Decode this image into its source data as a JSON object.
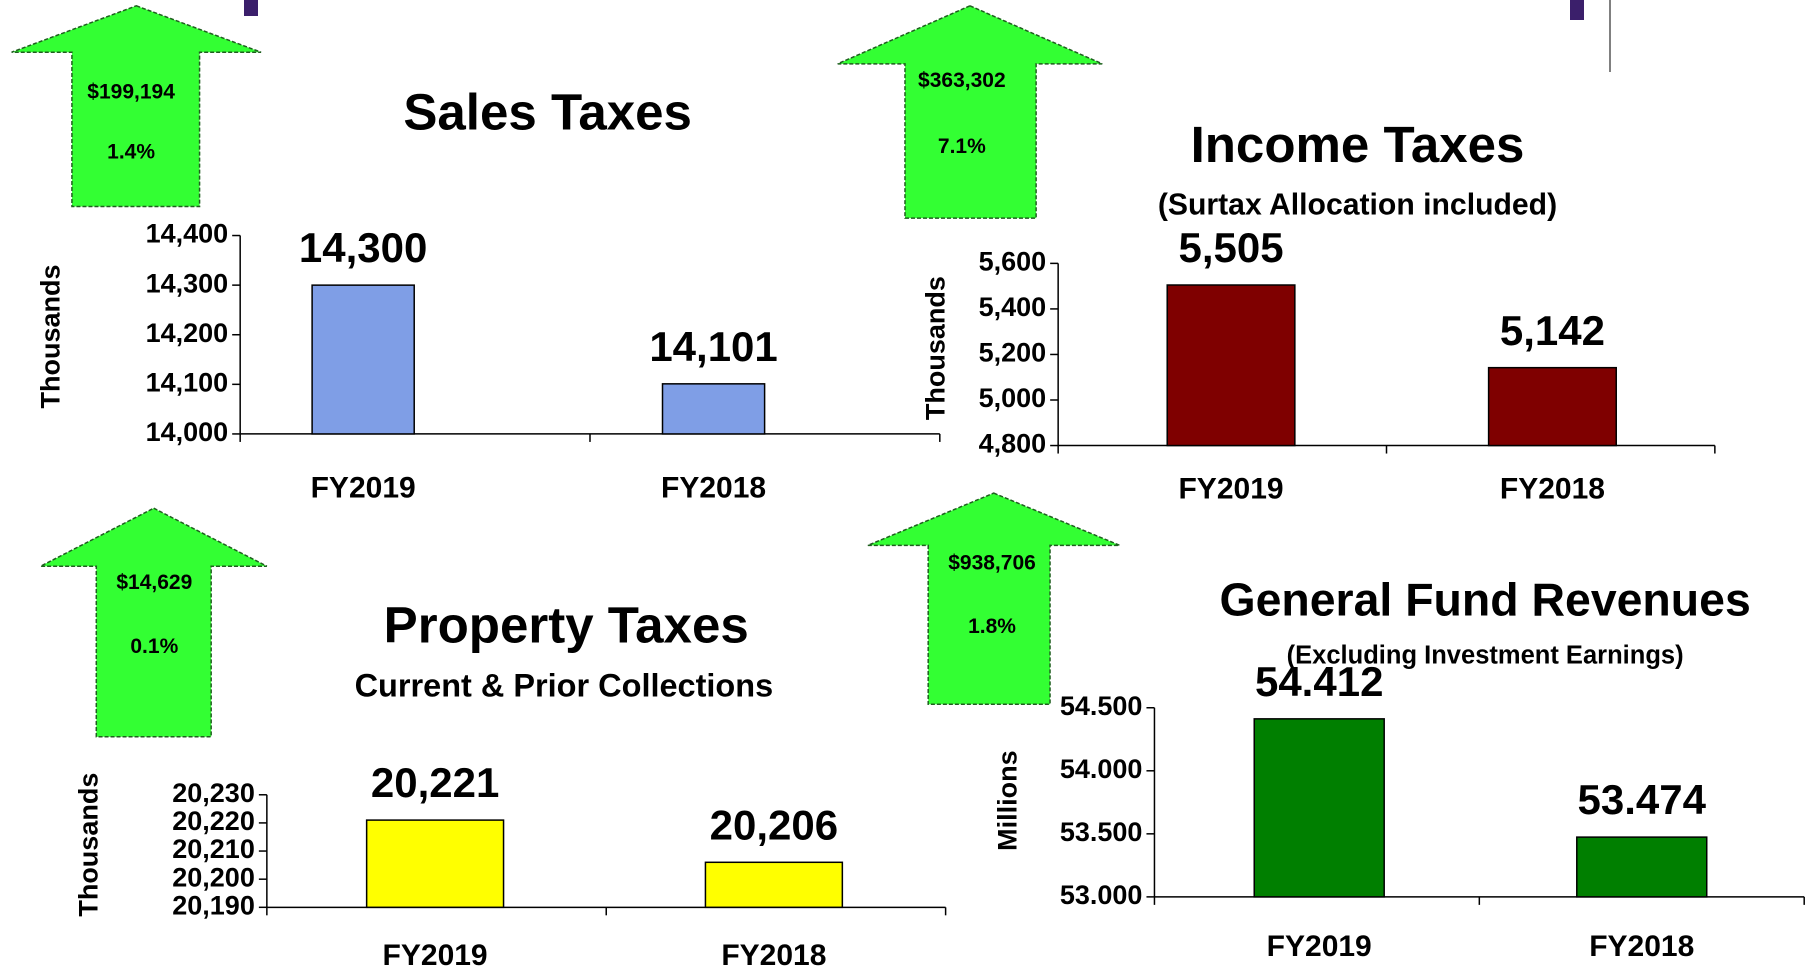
{
  "chart_data": [
    {
      "type": "bar",
      "title": "Sales Taxes",
      "ylabel": "Thousands",
      "categories": [
        "FY2019",
        "FY2018"
      ],
      "values": [
        14300,
        14101
      ],
      "value_labels": [
        "14,300",
        "14,101"
      ],
      "color": "#7f9ee6",
      "ylim": [
        14000,
        14400
      ],
      "yticks": [
        {
          "value": 14000,
          "label": "14,000"
        },
        {
          "value": 14100,
          "label": "14,100"
        },
        {
          "value": 14200,
          "label": "14,200"
        },
        {
          "value": 14300,
          "label": "14,300"
        },
        {
          "value": 14400,
          "label": "14,400"
        }
      ],
      "annotations": [
        "$199,194",
        "1.4%"
      ]
    },
    {
      "type": "bar",
      "title": "Income Taxes",
      "subtitle": "(Surtax Allocation included)",
      "ylabel": "Thousands",
      "categories": [
        "FY2019",
        "FY2018"
      ],
      "values": [
        5505,
        5142
      ],
      "value_labels": [
        "5,505",
        "5,142"
      ],
      "color": "#7f0000",
      "ylim": [
        4800,
        5600
      ],
      "yticks": [
        {
          "value": 4800,
          "label": "4,800"
        },
        {
          "value": 5000,
          "label": "5,000"
        },
        {
          "value": 5200,
          "label": "5,200"
        },
        {
          "value": 5400,
          "label": "5,400"
        },
        {
          "value": 5600,
          "label": "5,600"
        }
      ],
      "annotations": [
        "$363,302",
        "7.1%"
      ]
    },
    {
      "type": "bar",
      "title": "Property Taxes",
      "subtitle": "Current & Prior Collections",
      "ylabel": "Thousands",
      "categories": [
        "FY2019",
        "FY2018"
      ],
      "values": [
        20221,
        20206
      ],
      "value_labels": [
        "20,221",
        "20,206"
      ],
      "color": "#ffff00",
      "ylim": [
        20190,
        20230
      ],
      "yticks": [
        {
          "value": 20190,
          "label": "20,190"
        },
        {
          "value": 20200,
          "label": "20,200"
        },
        {
          "value": 20210,
          "label": "20,210"
        },
        {
          "value": 20220,
          "label": "20,220"
        },
        {
          "value": 20230,
          "label": "20,230"
        }
      ],
      "annotations": [
        "$14,629",
        "0.1%"
      ]
    },
    {
      "type": "bar",
      "title": "General Fund Revenues",
      "subtitle": "(Excluding Investment Earnings)",
      "ylabel": "Millions",
      "categories": [
        "FY2019",
        "FY2018"
      ],
      "values": [
        54.412,
        53.474
      ],
      "value_labels": [
        "54.412",
        "53.474"
      ],
      "color": "#007f00",
      "ylim": [
        53.0,
        54.5
      ],
      "yticks": [
        {
          "value": 53.0,
          "label": "53.000"
        },
        {
          "value": 53.5,
          "label": "53.500"
        },
        {
          "value": 54.0,
          "label": "54.000"
        },
        {
          "value": 54.5,
          "label": "54.500"
        }
      ],
      "annotations": [
        "$938,706",
        "1.8%"
      ]
    }
  ]
}
